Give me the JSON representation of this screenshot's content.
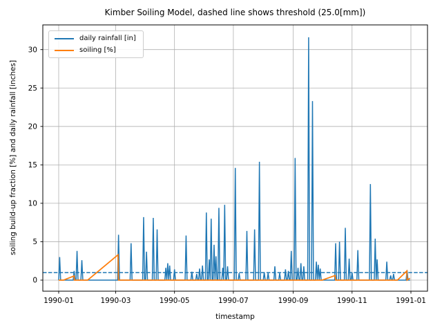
{
  "figure": {
    "kind": "matplotlib-line-chart",
    "background": "#ffffff"
  },
  "legend": {
    "position": "upper-left",
    "items": [
      {
        "label": "daily rainfall [in]",
        "color": "#1f77b4",
        "style": "solid"
      },
      {
        "label": "soiling [%]",
        "color": "#ff7f0e",
        "style": "solid"
      }
    ]
  },
  "chart_data": {
    "type": "line",
    "title": "Kimber Soiling Model, dashed line shows threshold (25.0[mm])",
    "xlabel": "timestamp",
    "ylabel": "soiling build-up fraction [%] and daily rainfall [inches]",
    "grid": true,
    "legend_position": "upper left",
    "x_axis": {
      "unit": "date",
      "tick_labels": [
        "1990-01",
        "1990-03",
        "1990-05",
        "1990-07",
        "1990-09",
        "1990-11",
        "1991-01"
      ],
      "tick_days": [
        1,
        60,
        121,
        182,
        244,
        305,
        366
      ],
      "range_days": [
        -17,
        384
      ]
    },
    "y_axis": {
      "tick_labels": [
        "0",
        "5",
        "10",
        "15",
        "20",
        "25",
        "30"
      ],
      "tick_values": [
        0,
        5,
        10,
        15,
        20,
        25,
        30
      ],
      "range": [
        -1.6,
        33.2
      ]
    },
    "threshold": {
      "value_mm": 25.0,
      "value_inches": 0.984,
      "color": "#1f77b4",
      "style": "dashed",
      "description": "dashed line shows threshold (25.0[mm])"
    },
    "series": [
      {
        "name": "daily rainfall [in]",
        "color": "#1f77b4",
        "unit": "inches",
        "baseline": 0,
        "note": "sparse spikes as [day_of_1990, inches]; all other days are 0",
        "spikes_day_value": [
          [
            2,
            3.0
          ],
          [
            17,
            1.2
          ],
          [
            20,
            3.8
          ],
          [
            25,
            2.6
          ],
          [
            63,
            5.9
          ],
          [
            76,
            4.8
          ],
          [
            89,
            8.2
          ],
          [
            92,
            3.7
          ],
          [
            99,
            8.1
          ],
          [
            103,
            6.6
          ],
          [
            112,
            1.6
          ],
          [
            114,
            2.2
          ],
          [
            116,
            1.9
          ],
          [
            121,
            1.4
          ],
          [
            133,
            5.8
          ],
          [
            139,
            1.1
          ],
          [
            144,
            0.8
          ],
          [
            147,
            1.5
          ],
          [
            150,
            1.9
          ],
          [
            154,
            8.8
          ],
          [
            157,
            2.7
          ],
          [
            159,
            8.0
          ],
          [
            162,
            4.6
          ],
          [
            164,
            3.1
          ],
          [
            167,
            9.4
          ],
          [
            171,
            1.6
          ],
          [
            173,
            9.8
          ],
          [
            176,
            1.8
          ],
          [
            184,
            14.6
          ],
          [
            188,
            0.9
          ],
          [
            196,
            6.4
          ],
          [
            204,
            6.6
          ],
          [
            209,
            15.4
          ],
          [
            214,
            1.0
          ],
          [
            218,
            0.9
          ],
          [
            225,
            1.8
          ],
          [
            230,
            0.9
          ],
          [
            236,
            1.4
          ],
          [
            239,
            1.2
          ],
          [
            242,
            3.8
          ],
          [
            246,
            15.9
          ],
          [
            249,
            1.6
          ],
          [
            252,
            2.2
          ],
          [
            255,
            1.8
          ],
          [
            260,
            31.6
          ],
          [
            264,
            23.3
          ],
          [
            268,
            2.4
          ],
          [
            270,
            2.0
          ],
          [
            272,
            1.5
          ],
          [
            288,
            4.8
          ],
          [
            292,
            5.0
          ],
          [
            298,
            6.8
          ],
          [
            302,
            2.8
          ],
          [
            305,
            1.0
          ],
          [
            311,
            3.9
          ],
          [
            324,
            12.5
          ],
          [
            329,
            5.4
          ],
          [
            331,
            2.7
          ],
          [
            341,
            2.4
          ],
          [
            345,
            0.6
          ],
          [
            348,
            0.8
          ],
          [
            362,
            1.3
          ]
        ]
      },
      {
        "name": "soiling [%]",
        "color": "#ff7f0e",
        "unit": "%",
        "note": "piecewise-linear build-up, reset to 0 by rain above threshold",
        "points_day_value": [
          [
            1,
            0
          ],
          [
            6,
            0
          ],
          [
            17,
            0.55
          ],
          [
            17.2,
            0
          ],
          [
            31,
            0
          ],
          [
            62.5,
            3.3
          ],
          [
            63,
            0
          ],
          [
            274,
            0
          ],
          [
            287.5,
            0.6
          ],
          [
            288,
            0
          ],
          [
            352,
            0
          ],
          [
            361.8,
            1.2
          ],
          [
            362,
            0
          ],
          [
            365,
            0.25
          ]
        ]
      }
    ]
  },
  "colors": {
    "rainfall": "#1f77b4",
    "soiling": "#ff7f0e",
    "grid": "#b0b0b0",
    "spine": "#000000",
    "text": "#000000",
    "background": "#ffffff"
  }
}
